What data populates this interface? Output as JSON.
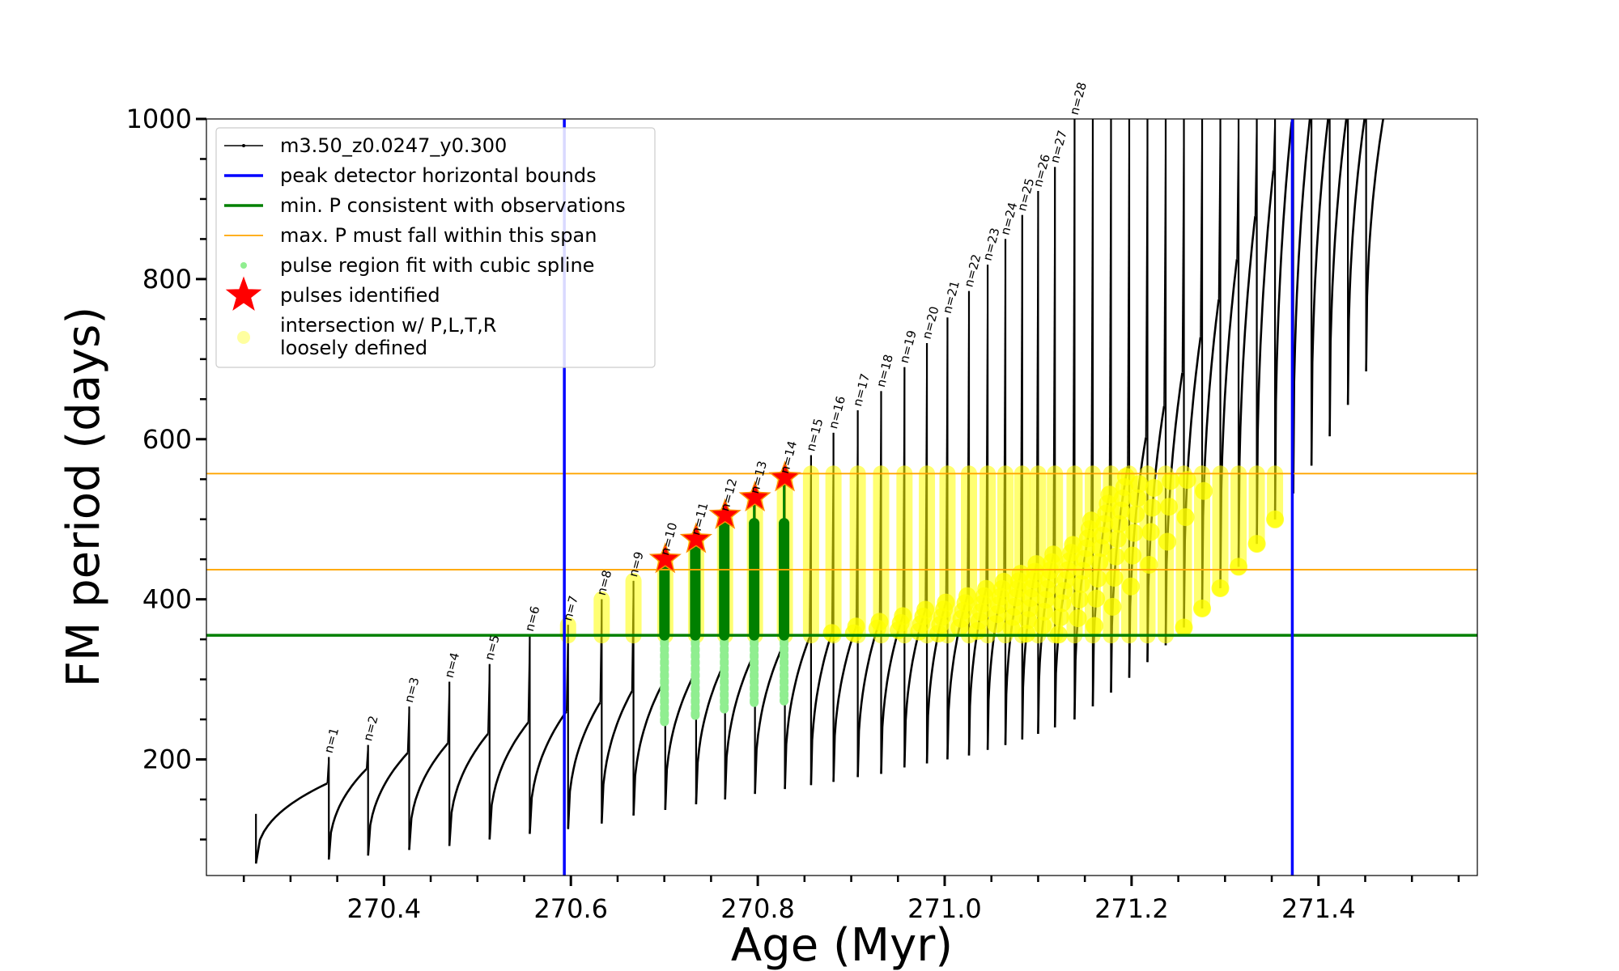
{
  "chart_data": {
    "type": "scatter",
    "title": "",
    "xlabel": "Age (Myr)",
    "ylabel": "FM period (days)",
    "xlim": [
      270.21,
      271.57
    ],
    "ylim": [
      55,
      1000
    ],
    "xticks": [
      270.4,
      270.6,
      270.8,
      271.0,
      271.2,
      271.4
    ],
    "xtick_labels": [
      "270.4",
      "270.6",
      "270.8",
      "271.0",
      "271.2",
      "271.4"
    ],
    "yticks": [
      200,
      400,
      600,
      800,
      1000
    ],
    "ytick_labels": [
      "200",
      "400",
      "600",
      "800",
      "1000"
    ],
    "grid": false,
    "legend_position": "upper-left",
    "colors": {
      "track": "#000000",
      "bounds": "#0000ff",
      "min_p": "#008000",
      "max_p": "#ffa500",
      "spline": "#90ee90",
      "spline_dark": "#008000",
      "star": "#ff0000",
      "star_edge": "#ff8c00",
      "intersection": "#ffff00"
    },
    "horizontal_bounds": [
      270.593,
      271.372
    ],
    "min_period": 355,
    "max_period_span": [
      437,
      557
    ],
    "series": [
      {
        "name": "m3.50_z0.0247_y0.300",
        "kind": "track",
        "color": "#000000"
      },
      {
        "name": "peak detector horizontal bounds",
        "kind": "vline",
        "color": "#0000ff"
      },
      {
        "name": "min. P consistent with observations",
        "kind": "hline",
        "color": "#008000"
      },
      {
        "name": "max. P must fall within this span",
        "kind": "hline",
        "color": "#ffa500"
      },
      {
        "name": "pulse region fit with cubic spline",
        "kind": "dot",
        "color": "#90ee90"
      },
      {
        "name": "pulses identified",
        "kind": "star",
        "color": "#ff0000"
      },
      {
        "name": "intersection w/ P,L,T,R\nloosely defined",
        "kind": "blob",
        "color": "#ffff00"
      }
    ],
    "pulses": [
      {
        "n": "n=1",
        "age": 270.341,
        "period": 203,
        "min": 75,
        "pre_min": 170
      },
      {
        "n": "n=2",
        "age": 270.383,
        "period": 218,
        "min": 80,
        "pre_min": 188
      },
      {
        "n": "n=3",
        "age": 270.427,
        "period": 266,
        "min": 87,
        "pre_min": 208
      },
      {
        "n": "n=4",
        "age": 270.47,
        "period": 297,
        "min": 92,
        "pre_min": 220
      },
      {
        "n": "n=5",
        "age": 270.513,
        "period": 319,
        "min": 100,
        "pre_min": 232
      },
      {
        "n": "n=6",
        "age": 270.556,
        "period": 355,
        "min": 107,
        "pre_min": 246
      },
      {
        "n": "n=7",
        "age": 270.597,
        "period": 368,
        "min": 113,
        "pre_min": 260
      },
      {
        "n": "n=8",
        "age": 270.633,
        "period": 400,
        "min": 120,
        "pre_min": 271
      },
      {
        "n": "n=9",
        "age": 270.667,
        "period": 423,
        "min": 130,
        "pre_min": 285
      },
      {
        "n": "n=10",
        "age": 270.701,
        "period": 450,
        "min": 137,
        "pre_min": 297
      },
      {
        "n": "n=11",
        "age": 270.734,
        "period": 475,
        "min": 144,
        "pre_min": 307
      },
      {
        "n": "n=12",
        "age": 270.765,
        "period": 505,
        "min": 150,
        "pre_min": 318
      },
      {
        "n": "n=13",
        "age": 270.797,
        "period": 527,
        "min": 157,
        "pre_min": 330
      },
      {
        "n": "n=14",
        "age": 270.829,
        "period": 552,
        "min": 163,
        "pre_min": 343
      },
      {
        "n": "n=15",
        "age": 270.857,
        "period": 580,
        "min": 168,
        "pre_min": 352
      },
      {
        "n": "n=16",
        "age": 270.881,
        "period": 608,
        "min": 172,
        "pre_min": 358
      },
      {
        "n": "n=17",
        "age": 270.907,
        "period": 636,
        "min": 178,
        "pre_min": 366
      },
      {
        "n": "n=18",
        "age": 270.932,
        "period": 660,
        "min": 182,
        "pre_min": 372
      },
      {
        "n": "n=19",
        "age": 270.957,
        "period": 690,
        "min": 190,
        "pre_min": 379
      },
      {
        "n": "n=20",
        "age": 270.981,
        "period": 720,
        "min": 195,
        "pre_min": 387
      },
      {
        "n": "n=21",
        "age": 271.003,
        "period": 752,
        "min": 200,
        "pre_min": 396
      },
      {
        "n": "n=22",
        "age": 271.026,
        "period": 785,
        "min": 205,
        "pre_min": 404
      },
      {
        "n": "n=23",
        "age": 271.046,
        "period": 818,
        "min": 212,
        "pre_min": 413
      },
      {
        "n": "n=24",
        "age": 271.065,
        "period": 850,
        "min": 218,
        "pre_min": 422
      },
      {
        "n": "n=25",
        "age": 271.083,
        "period": 880,
        "min": 225,
        "pre_min": 432
      },
      {
        "n": "n=26",
        "age": 271.1,
        "period": 910,
        "min": 232,
        "pre_min": 444
      },
      {
        "n": "n=27",
        "age": 271.118,
        "period": 940,
        "min": 240,
        "pre_min": 456
      },
      {
        "n": "n=28",
        "age": 271.139,
        "period": 1000,
        "min": 250,
        "pre_min": 468
      }
    ]
  },
  "legend": {
    "entries": [
      "m3.50_z0.0247_y0.300",
      "peak detector horizontal bounds",
      "min. P consistent with observations",
      "max. P must fall within this span",
      "pulse region fit with cubic spline",
      "pulses identified",
      "intersection w/ P,L,T,R",
      "loosely defined"
    ]
  }
}
